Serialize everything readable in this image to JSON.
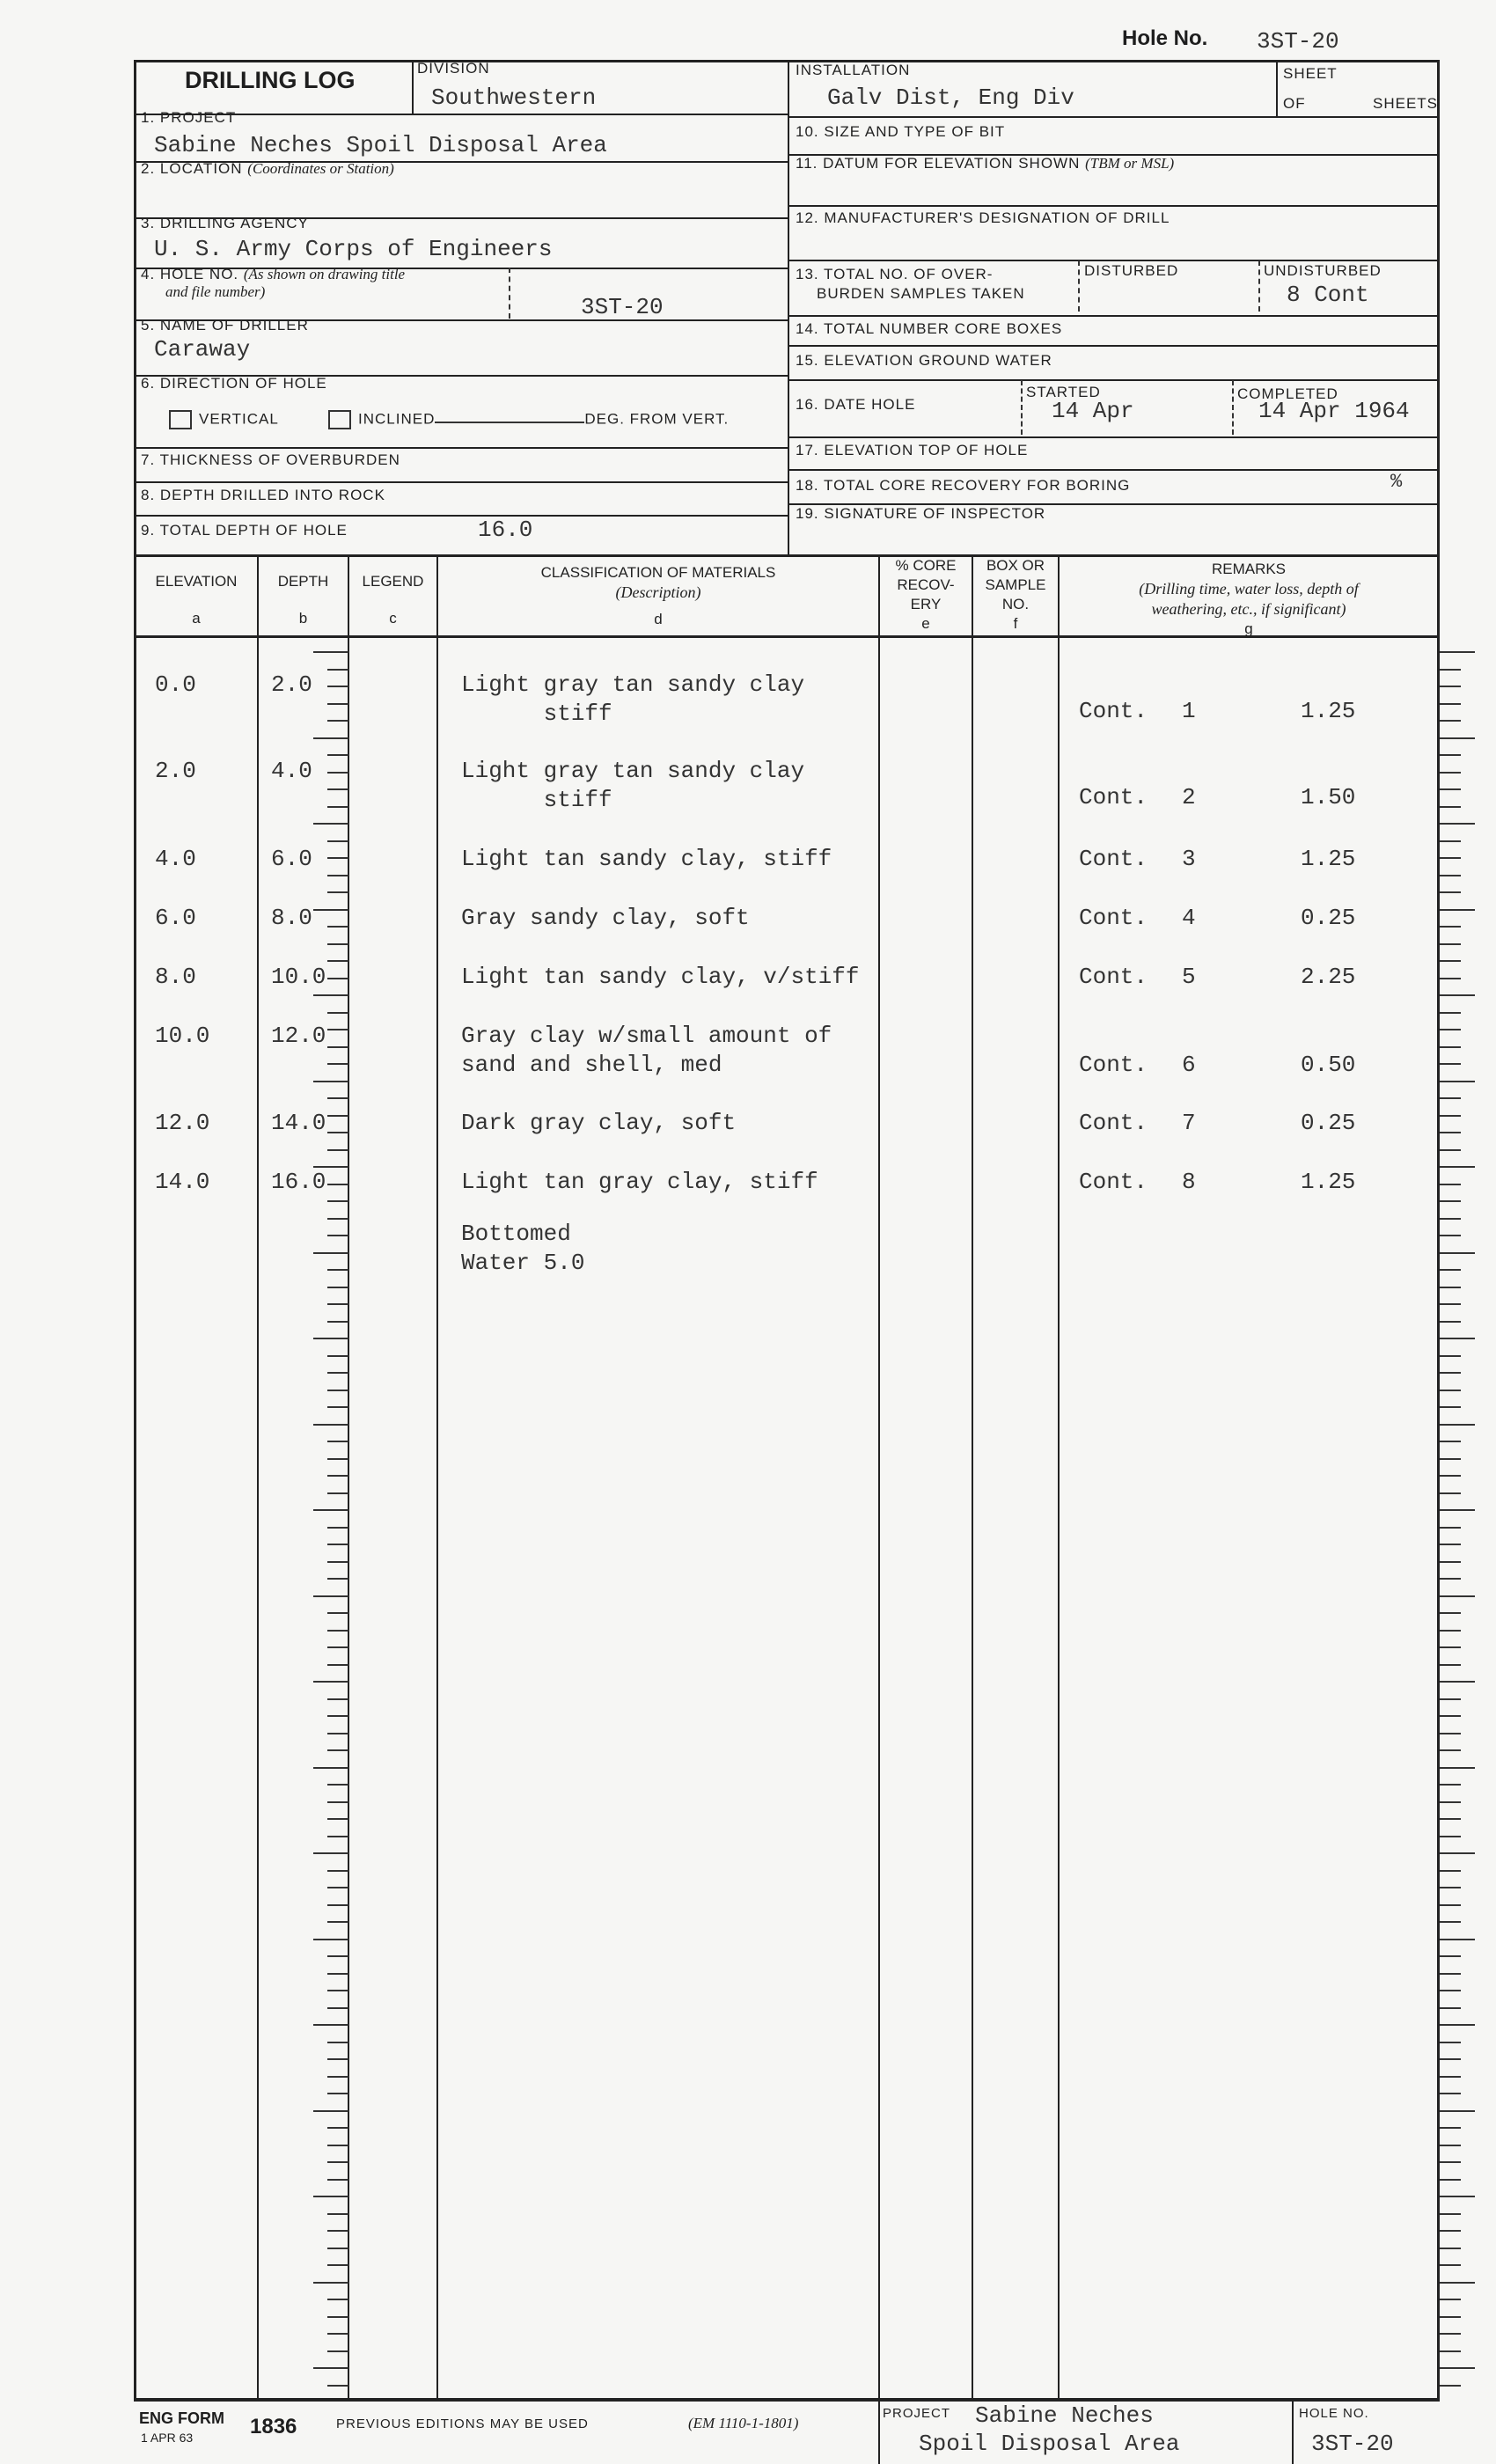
{
  "top": {
    "hole_no_label": "Hole No.",
    "hole_no": "3ST-20"
  },
  "header": {
    "title": "DRILLING LOG",
    "division_label": "DIVISION",
    "division": "Southwestern",
    "installation_label": "INSTALLATION",
    "installation": "Galv Dist, Eng Div",
    "sheet_label": "SHEET",
    "of_label": "OF",
    "sheets_label": "SHEETS"
  },
  "left": {
    "project_label": "1. PROJECT",
    "project": "Sabine Neches Spoil Disposal Area",
    "location_label": "2. LOCATION",
    "location_hint": "(Coordinates or Station)",
    "agency_label": "3. DRILLING AGENCY",
    "agency": "U. S. Army Corps of Engineers",
    "hole_label": "4. HOLE NO.",
    "hole_hint1": "(As shown on drawing title",
    "hole_hint2": "and file number)",
    "hole": "3ST-20",
    "driller_label": "5. NAME OF DRILLER",
    "driller": "Caraway",
    "direction_label": "6. DIRECTION OF HOLE",
    "vertical_label": "VERTICAL",
    "inclined_label": "INCLINED",
    "deg_label": "DEG. FROM VERT.",
    "overburden_label": "7. THICKNESS OF OVERBURDEN",
    "rock_label": "8. DEPTH DRILLED INTO ROCK",
    "total_depth_label": "9. TOTAL DEPTH OF HOLE",
    "total_depth": "16.0"
  },
  "right": {
    "bit_label": "10. SIZE AND TYPE OF BIT",
    "datum_label": "11. DATUM FOR ELEVATION SHOWN",
    "datum_hint": "(TBM or MSL)",
    "mfr_label": "12. MANUFACTURER'S DESIGNATION OF DRILL",
    "samples_label1": "13. TOTAL NO. OF OVER-",
    "samples_label2": "BURDEN SAMPLES TAKEN",
    "disturbed_label": "DISTURBED",
    "undisturbed_label": "UNDISTURBED",
    "undisturbed": "8 Cont",
    "core_boxes_label": "14. TOTAL NUMBER CORE BOXES",
    "ground_water_label": "15. ELEVATION GROUND WATER",
    "date_label": "16. DATE HOLE",
    "started_label": "STARTED",
    "started": "14 Apr",
    "completed_label": "COMPLETED",
    "completed": "14 Apr 1964",
    "top_elev_label": "17. ELEVATION TOP OF HOLE",
    "recovery_label": "18. TOTAL CORE RECOVERY FOR BORING",
    "recovery_unit": "%",
    "signature_label": "19. SIGNATURE OF INSPECTOR"
  },
  "columns": {
    "elevation": "ELEVATION",
    "elevation_l": "a",
    "depth": "DEPTH",
    "depth_l": "b",
    "legend": "LEGEND",
    "legend_l": "c",
    "class1": "CLASSIFICATION OF MATERIALS",
    "class2": "(Description)",
    "class_l": "d",
    "core1": "% CORE",
    "core2": "RECOV-",
    "core3": "ERY",
    "core_l": "e",
    "box1": "BOX OR",
    "box2": "SAMPLE",
    "box3": "NO.",
    "box_l": "f",
    "rem1": "REMARKS",
    "rem2": "(Drilling time, water loss, depth of",
    "rem3": "weathering, etc., if significant)",
    "rem_l": "g"
  },
  "rows": [
    {
      "elev": "0.0",
      "depth": "2.0",
      "desc": [
        "Light gray tan sandy clay",
        "      stiff"
      ],
      "sample": "Cont.",
      "no": "1",
      "remark": "1.25"
    },
    {
      "elev": "2.0",
      "depth": "4.0",
      "desc": [
        "Light gray tan sandy clay",
        "      stiff"
      ],
      "sample": "Cont.",
      "no": "2",
      "remark": "1.50"
    },
    {
      "elev": "4.0",
      "depth": "6.0",
      "desc": [
        "Light tan sandy clay, stiff"
      ],
      "sample": "Cont.",
      "no": "3",
      "remark": "1.25"
    },
    {
      "elev": "6.0",
      "depth": "8.0",
      "desc": [
        "Gray sandy clay, soft"
      ],
      "sample": "Cont.",
      "no": "4",
      "remark": "0.25"
    },
    {
      "elev": "8.0",
      "depth": "10.0",
      "desc": [
        "Light tan sandy clay, v/stiff"
      ],
      "sample": "Cont.",
      "no": "5",
      "remark": "2.25"
    },
    {
      "elev": "10.0",
      "depth": "12.0",
      "desc": [
        "Gray clay w/small amount of",
        "sand and shell, med"
      ],
      "sample": "Cont.",
      "no": "6",
      "remark": "0.50"
    },
    {
      "elev": "12.0",
      "depth": "14.0",
      "desc": [
        "Dark gray clay, soft"
      ],
      "sample": "Cont.",
      "no": "7",
      "remark": "0.25"
    },
    {
      "elev": "14.0",
      "depth": "16.0",
      "desc": [
        "Light tan gray clay, stiff"
      ],
      "sample": "Cont.",
      "no": "8",
      "remark": "1.25"
    }
  ],
  "bottom_note": [
    "Bottomed",
    "Water 5.0"
  ],
  "footer": {
    "form": "ENG FORM",
    "form_date": "1 APR 63",
    "form_no": "1836",
    "prev": "PREVIOUS EDITIONS MAY BE USED",
    "em": "(EM 1110-1-1801)",
    "project_label": "PROJECT",
    "project1": "Sabine Neches",
    "project2": "Spoil Disposal Area",
    "hole_label": "HOLE NO.",
    "hole": "3ST-20"
  }
}
